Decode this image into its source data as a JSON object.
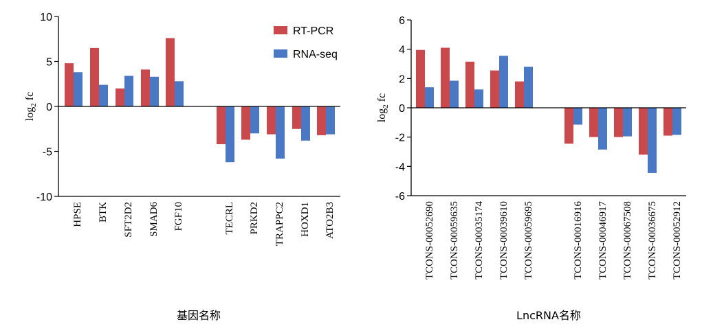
{
  "colors": {
    "rt_pcr": "#c9494d",
    "rna_seq": "#4a78c4",
    "axis": "#000000"
  },
  "chart_data": [
    {
      "type": "bar",
      "ylabel": "log2 fc",
      "xlabel": "基因名称",
      "ylim": [
        -10,
        10
      ],
      "yticks": [
        10,
        5,
        0,
        -5,
        -10
      ],
      "legend": "top-right",
      "categories": [
        "HPSE",
        "BTK",
        "SFT2D2",
        "SMAD6",
        "FGF10",
        "TECRL",
        "PRKD2",
        "TRAPPC2",
        "HOXD1",
        "ATO2B3"
      ],
      "series": [
        {
          "name": "RT-PCR",
          "values": [
            4.8,
            6.5,
            2.0,
            4.1,
            7.6,
            -4.2,
            -3.7,
            -3.1,
            -2.5,
            -3.2
          ]
        },
        {
          "name": "RNA-seq",
          "values": [
            3.8,
            2.4,
            3.4,
            3.3,
            2.8,
            -6.2,
            -3.0,
            -5.8,
            -3.8,
            -3.1
          ]
        }
      ]
    },
    {
      "type": "bar",
      "ylabel": "log2 fc",
      "xlabel": "LncRNA名称",
      "ylim": [
        -6,
        6
      ],
      "yticks": [
        6,
        4,
        2,
        0,
        -2,
        -4,
        -6
      ],
      "categories": [
        "TCONS-00052690",
        "TCONS-00059635",
        "TCONS-00035174",
        "TCONS-00039610",
        "TCONS-00059695",
        "TCONS-00016916",
        "TCONS-00046917",
        "TCONS-00067508",
        "TCONS-00036675",
        "TCONS-00052912"
      ],
      "series": [
        {
          "name": "RT-PCR",
          "values": [
            3.95,
            4.1,
            3.15,
            2.55,
            1.8,
            -2.45,
            -2.0,
            -2.0,
            -3.2,
            -1.9
          ]
        },
        {
          "name": "RNA-seq",
          "values": [
            1.4,
            1.85,
            1.25,
            3.55,
            2.8,
            -1.15,
            -2.85,
            -1.95,
            -4.45,
            -1.85
          ]
        }
      ]
    }
  ]
}
